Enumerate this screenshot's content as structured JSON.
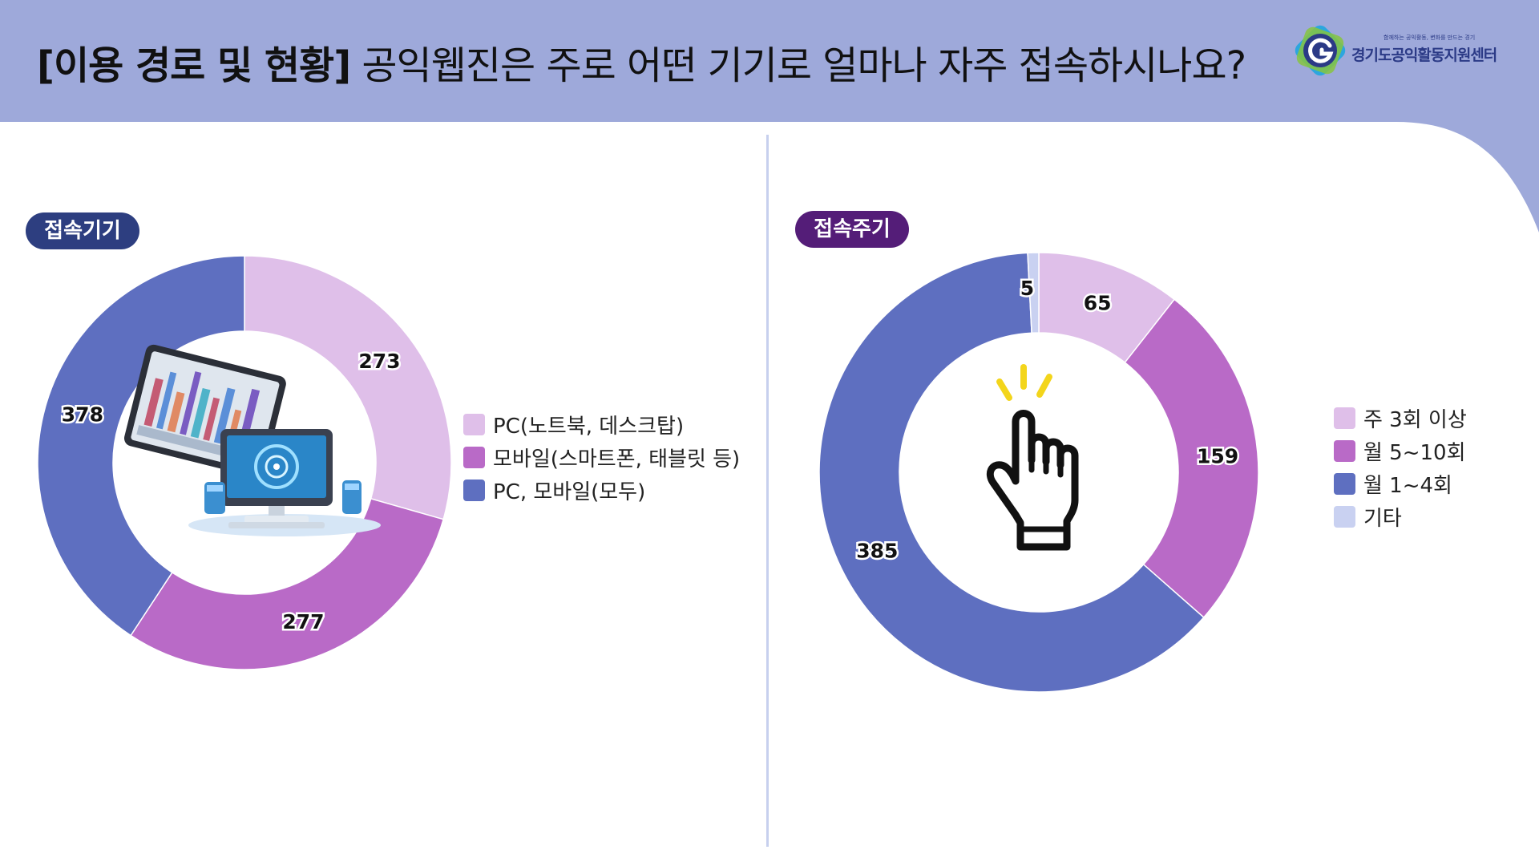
{
  "header": {
    "title_strong": "[이용 경로 및 현황]",
    "title_rest": " 공익웹진은 주로 어떤 기기로 얼마나 자주 접속하시나요?",
    "bg_color": "#9ea9da"
  },
  "logo": {
    "tagline": "함께하는 공익활동, 변화를 만드는 경기",
    "name": "경기도공익활동지원센터"
  },
  "badges": {
    "left": "접속기기",
    "right": "접속주기"
  },
  "chart_data": [
    {
      "type": "pie",
      "style": "donut",
      "categories": [
        "PC(노트북, 데스크탑)",
        "모바일(스마트폰, 태블릿 등)",
        "PC, 모바일(모두)"
      ],
      "values": [
        273,
        277,
        378
      ],
      "colors": [
        "#dfbfe9",
        "#b96ac7",
        "#5e6fc0"
      ],
      "legend_position": "right",
      "data_labels": true
    },
    {
      "type": "pie",
      "style": "donut",
      "categories": [
        "주 3회 이상",
        "월 5~10회",
        "월 1~4회",
        "기타"
      ],
      "values": [
        65,
        159,
        385,
        5
      ],
      "colors": [
        "#dfbfe9",
        "#b96ac7",
        "#5e6fc0",
        "#c9d1f1"
      ],
      "legend_position": "right",
      "data_labels": true
    }
  ],
  "icons": {
    "left_center": "tablet-and-computer-illustration",
    "right_center": "pointing-hand-click-icon"
  }
}
